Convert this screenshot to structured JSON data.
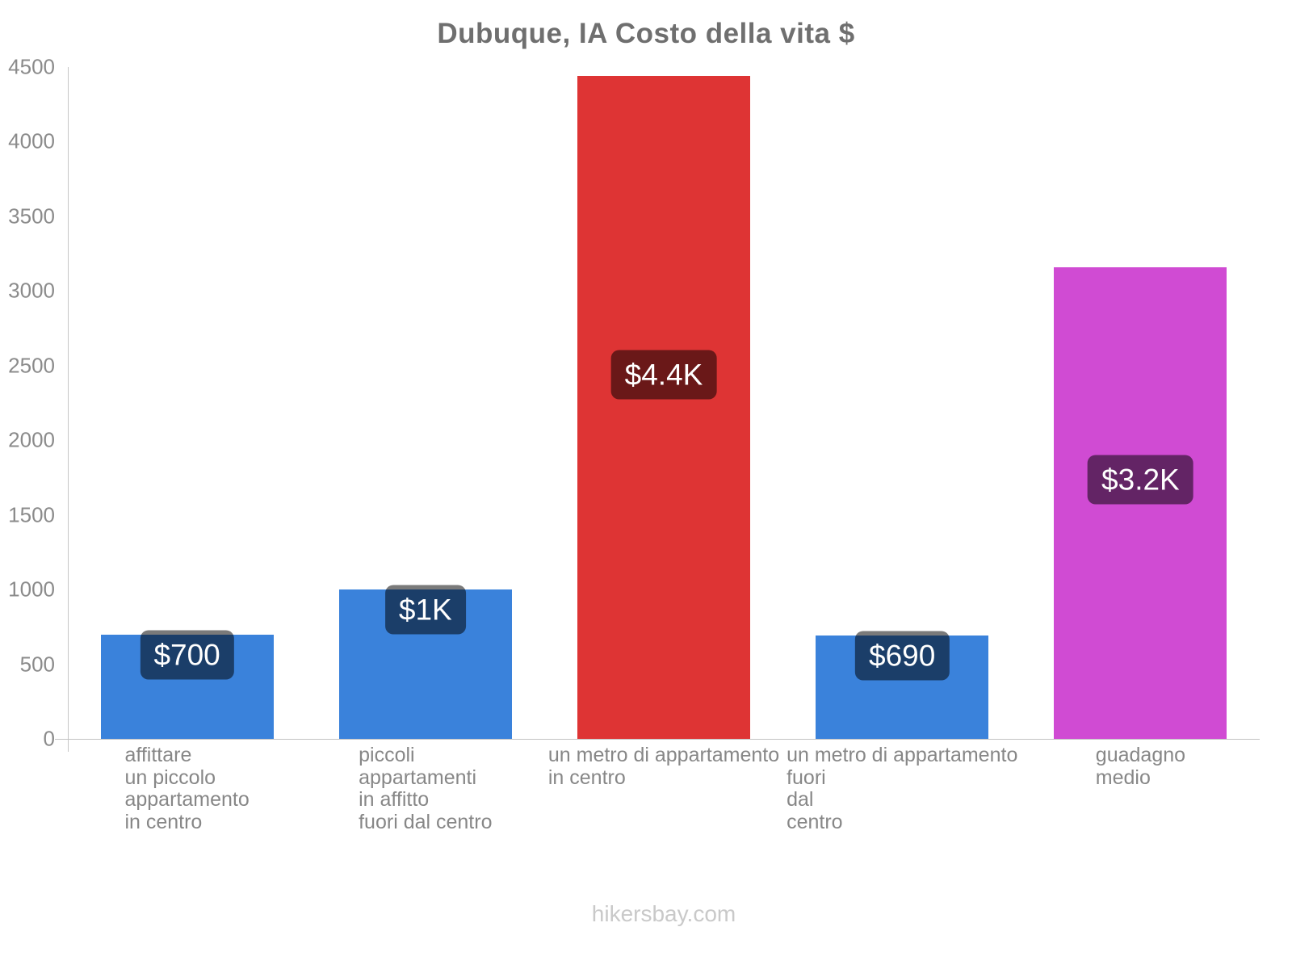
{
  "title": "Dubuque, IA Costo della vita $",
  "footer": "hikersbay.com",
  "chart_data": {
    "type": "bar",
    "title": "Dubuque, IA Costo della vita $",
    "categories": [
      "affittare\nun piccolo\nappartamento\nin centro",
      "piccoli\nappartamenti\nin affitto\nfuori dal centro",
      "un metro di appartamento\nin centro",
      "un metro di appartamento\nfuori\ndal\ncentro",
      "guadagno\nmedio"
    ],
    "values": [
      700,
      1000,
      4440,
      690,
      3160
    ],
    "value_labels": [
      "$700",
      "$1K",
      "$4.4K",
      "$690",
      "$3.2K"
    ],
    "bar_colors": [
      "#3a82db",
      "#3a82db",
      "#de3434",
      "#3a82db",
      "#d04bd3"
    ],
    "badge_overlay_color": "rgba(0,0,0,0.52)",
    "value_label_text_color": "#ffffff",
    "xlabel": "",
    "ylabel": "",
    "ylim": [
      0,
      4500
    ],
    "yticks": [
      0,
      500,
      1000,
      1500,
      2000,
      2500,
      3000,
      3500,
      4000,
      4500
    ],
    "grid": false,
    "legend": "none",
    "currency": "$"
  }
}
